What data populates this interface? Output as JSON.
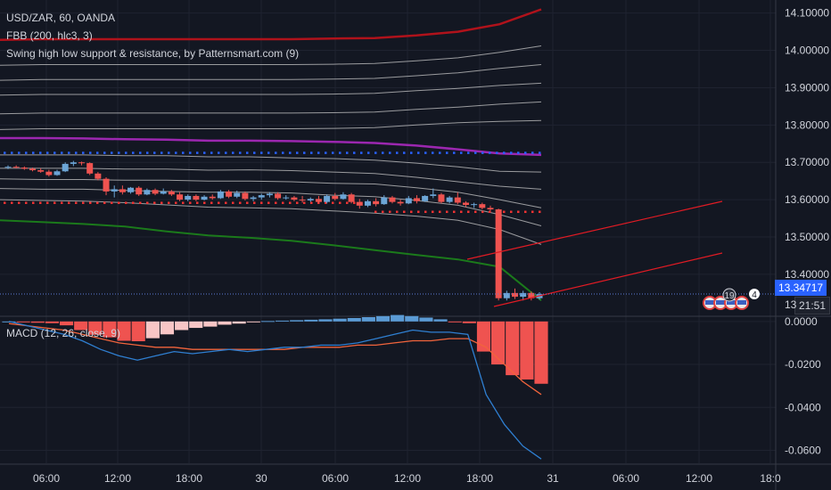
{
  "symbol_title": "USD/ZAR, 60, OANDA",
  "indicators": {
    "fbb": "FBB (200, hlc3, 3)",
    "swing": "Swing high low support & resistance, by Patternsmart.com (9)",
    "macd": "MACD (12, 26, close, 9)"
  },
  "price_axis": {
    "ticks": [
      "14.10000",
      "14.00000",
      "13.90000",
      "13.80000",
      "13.70000",
      "13.60000",
      "13.50000",
      "13.40000"
    ],
    "last_price": "13.34717",
    "countdown": "21:51",
    "partial_tick": "13"
  },
  "macd_axis": {
    "ticks": [
      "0.0000",
      "-0.0200",
      "-0.0400",
      "-0.0600"
    ]
  },
  "time_axis": {
    "ticks": [
      "06:00",
      "12:00",
      "18:00",
      "30",
      "06:00",
      "12:00",
      "18:00",
      "31",
      "06:00",
      "12:00",
      "18:0"
    ]
  },
  "events": {
    "count_a": "19",
    "count_b": "4"
  },
  "colors": {
    "up": "#6ca5d6",
    "down": "#ef5350",
    "fbb_top": "#b0121b",
    "fbb_mid": "#9c27b0",
    "fbb_bottom": "#1b7a1b",
    "band": "#c8c8c8",
    "swing_high": "#2962ff",
    "swing_low": "#ef3333",
    "macd_line": "#2f7fd1",
    "signal_line": "#f2643c",
    "hist_neg_strong": "#ef5350",
    "hist_neg_weak": "#f8c6c6",
    "hist_pos": "#5b9bd5"
  },
  "chart_data": [
    {
      "type": "candlestick",
      "title": "USD/ZAR, 60, OANDA",
      "ylim": [
        13.29,
        14.135
      ],
      "x_ticks": [
        "06:00",
        "12:00",
        "18:00",
        "30",
        "06:00",
        "12:00",
        "18:00",
        "31",
        "06:00",
        "12:00",
        "18:0"
      ],
      "candles": [
        {
          "o": 13.686,
          "h": 13.692,
          "l": 13.682,
          "c": 13.688
        },
        {
          "o": 13.688,
          "h": 13.692,
          "l": 13.684,
          "c": 13.686
        },
        {
          "o": 13.686,
          "h": 13.689,
          "l": 13.68,
          "c": 13.683
        },
        {
          "o": 13.683,
          "h": 13.686,
          "l": 13.676,
          "c": 13.679
        },
        {
          "o": 13.679,
          "h": 13.684,
          "l": 13.672,
          "c": 13.675
        },
        {
          "o": 13.675,
          "h": 13.68,
          "l": 13.662,
          "c": 13.666
        },
        {
          "o": 13.666,
          "h": 13.68,
          "l": 13.664,
          "c": 13.676
        },
        {
          "o": 13.676,
          "h": 13.7,
          "l": 13.674,
          "c": 13.696
        },
        {
          "o": 13.696,
          "h": 13.704,
          "l": 13.69,
          "c": 13.7
        },
        {
          "o": 13.7,
          "h": 13.702,
          "l": 13.692,
          "c": 13.698
        },
        {
          "o": 13.698,
          "h": 13.7,
          "l": 13.666,
          "c": 13.67
        },
        {
          "o": 13.67,
          "h": 13.674,
          "l": 13.652,
          "c": 13.656
        },
        {
          "o": 13.656,
          "h": 13.66,
          "l": 13.612,
          "c": 13.622
        },
        {
          "o": 13.622,
          "h": 13.638,
          "l": 13.606,
          "c": 13.628
        },
        {
          "o": 13.628,
          "h": 13.638,
          "l": 13.614,
          "c": 13.62
        },
        {
          "o": 13.62,
          "h": 13.634,
          "l": 13.616,
          "c": 13.632
        },
        {
          "o": 13.632,
          "h": 13.636,
          "l": 13.61,
          "c": 13.614
        },
        {
          "o": 13.614,
          "h": 13.63,
          "l": 13.612,
          "c": 13.626
        },
        {
          "o": 13.626,
          "h": 13.63,
          "l": 13.612,
          "c": 13.616
        },
        {
          "o": 13.616,
          "h": 13.63,
          "l": 13.614,
          "c": 13.622
        },
        {
          "o": 13.622,
          "h": 13.626,
          "l": 13.61,
          "c": 13.614
        },
        {
          "o": 13.614,
          "h": 13.62,
          "l": 13.596,
          "c": 13.6
        },
        {
          "o": 13.6,
          "h": 13.614,
          "l": 13.596,
          "c": 13.61
        },
        {
          "o": 13.61,
          "h": 13.614,
          "l": 13.596,
          "c": 13.6
        },
        {
          "o": 13.6,
          "h": 13.612,
          "l": 13.598,
          "c": 13.608
        },
        {
          "o": 13.608,
          "h": 13.614,
          "l": 13.6,
          "c": 13.604
        },
        {
          "o": 13.604,
          "h": 13.626,
          "l": 13.602,
          "c": 13.622
        },
        {
          "o": 13.622,
          "h": 13.626,
          "l": 13.604,
          "c": 13.608
        },
        {
          "o": 13.608,
          "h": 13.624,
          "l": 13.604,
          "c": 13.618
        },
        {
          "o": 13.618,
          "h": 13.622,
          "l": 13.598,
          "c": 13.602
        },
        {
          "o": 13.602,
          "h": 13.61,
          "l": 13.596,
          "c": 13.606
        },
        {
          "o": 13.606,
          "h": 13.616,
          "l": 13.6,
          "c": 13.612
        },
        {
          "o": 13.612,
          "h": 13.62,
          "l": 13.606,
          "c": 13.616
        },
        {
          "o": 13.616,
          "h": 13.62,
          "l": 13.6,
          "c": 13.604
        },
        {
          "o": 13.604,
          "h": 13.612,
          "l": 13.6,
          "c": 13.606
        },
        {
          "o": 13.606,
          "h": 13.61,
          "l": 13.596,
          "c": 13.6
        },
        {
          "o": 13.6,
          "h": 13.61,
          "l": 13.592,
          "c": 13.598
        },
        {
          "o": 13.598,
          "h": 13.606,
          "l": 13.594,
          "c": 13.602
        },
        {
          "o": 13.602,
          "h": 13.61,
          "l": 13.59,
          "c": 13.594
        },
        {
          "o": 13.594,
          "h": 13.614,
          "l": 13.59,
          "c": 13.61
        },
        {
          "o": 13.61,
          "h": 13.618,
          "l": 13.598,
          "c": 13.602
        },
        {
          "o": 13.602,
          "h": 13.62,
          "l": 13.6,
          "c": 13.614
        },
        {
          "o": 13.614,
          "h": 13.618,
          "l": 13.59,
          "c": 13.594
        },
        {
          "o": 13.594,
          "h": 13.602,
          "l": 13.576,
          "c": 13.584
        },
        {
          "o": 13.584,
          "h": 13.6,
          "l": 13.58,
          "c": 13.596
        },
        {
          "o": 13.596,
          "h": 13.604,
          "l": 13.582,
          "c": 13.588
        },
        {
          "o": 13.588,
          "h": 13.612,
          "l": 13.586,
          "c": 13.606
        },
        {
          "o": 13.606,
          "h": 13.61,
          "l": 13.59,
          "c": 13.594
        },
        {
          "o": 13.594,
          "h": 13.6,
          "l": 13.584,
          "c": 13.59
        },
        {
          "o": 13.59,
          "h": 13.61,
          "l": 13.588,
          "c": 13.604
        },
        {
          "o": 13.604,
          "h": 13.612,
          "l": 13.59,
          "c": 13.596
        },
        {
          "o": 13.596,
          "h": 13.612,
          "l": 13.594,
          "c": 13.61
        },
        {
          "o": 13.61,
          "h": 13.63,
          "l": 13.604,
          "c": 13.614
        },
        {
          "o": 13.614,
          "h": 13.618,
          "l": 13.59,
          "c": 13.594
        },
        {
          "o": 13.594,
          "h": 13.61,
          "l": 13.59,
          "c": 13.606
        },
        {
          "o": 13.606,
          "h": 13.62,
          "l": 13.588,
          "c": 13.592
        },
        {
          "o": 13.592,
          "h": 13.596,
          "l": 13.58,
          "c": 13.586
        },
        {
          "o": 13.586,
          "h": 13.592,
          "l": 13.578,
          "c": 13.588
        },
        {
          "o": 13.588,
          "h": 13.592,
          "l": 13.574,
          "c": 13.578
        },
        {
          "o": 13.578,
          "h": 13.584,
          "l": 13.57,
          "c": 13.574
        },
        {
          "o": 13.574,
          "h": 13.576,
          "l": 13.33,
          "c": 13.336
        },
        {
          "o": 13.336,
          "h": 13.356,
          "l": 13.33,
          "c": 13.35
        },
        {
          "o": 13.35,
          "h": 13.362,
          "l": 13.334,
          "c": 13.34
        },
        {
          "o": 13.34,
          "h": 13.356,
          "l": 13.33,
          "c": 13.35
        },
        {
          "o": 13.35,
          "h": 13.354,
          "l": 13.33,
          "c": 13.336
        },
        {
          "o": 13.336,
          "h": 13.352,
          "l": 13.332,
          "c": 13.347
        }
      ],
      "bands": {
        "fbb_top": [
          14.028,
          14.03,
          14.03,
          14.03,
          14.03,
          14.03,
          14.03,
          14.03,
          14.032,
          14.033,
          14.04,
          14.05,
          14.07,
          14.11
        ],
        "band_upper_1": [
          13.96,
          13.962,
          13.962,
          13.962,
          13.962,
          13.962,
          13.962,
          13.962,
          13.963,
          13.965,
          13.972,
          13.98,
          13.995,
          14.012
        ],
        "band_upper_2": [
          13.92,
          13.922,
          13.922,
          13.922,
          13.922,
          13.922,
          13.922,
          13.922,
          13.923,
          13.925,
          13.932,
          13.94,
          13.952,
          13.962
        ],
        "band_upper_3": [
          13.88,
          13.882,
          13.882,
          13.882,
          13.882,
          13.882,
          13.882,
          13.882,
          13.883,
          13.885,
          13.892,
          13.898,
          13.906,
          13.912
        ],
        "band_upper_4": [
          13.83,
          13.832,
          13.832,
          13.832,
          13.832,
          13.832,
          13.832,
          13.832,
          13.833,
          13.835,
          13.842,
          13.848,
          13.856,
          13.862
        ],
        "band_upper_5": [
          13.788,
          13.79,
          13.79,
          13.79,
          13.79,
          13.79,
          13.79,
          13.79,
          13.791,
          13.793,
          13.8,
          13.806,
          13.81,
          13.812
        ],
        "fbb_mid": [
          13.765,
          13.765,
          13.764,
          13.762,
          13.761,
          13.758,
          13.758,
          13.757,
          13.755,
          13.752,
          13.745,
          13.735,
          13.724,
          13.72
        ],
        "band_lower_1": [
          13.72,
          13.72,
          13.72,
          13.718,
          13.718,
          13.715,
          13.715,
          13.712,
          13.71,
          13.706,
          13.698,
          13.688,
          13.676,
          13.674
        ],
        "band_lower_2": [
          13.684,
          13.684,
          13.684,
          13.682,
          13.682,
          13.679,
          13.68,
          13.678,
          13.674,
          13.67,
          13.66,
          13.648,
          13.636,
          13.628
        ],
        "band_lower_3": [
          13.656,
          13.654,
          13.654,
          13.652,
          13.652,
          13.65,
          13.65,
          13.648,
          13.644,
          13.642,
          13.632,
          13.62,
          13.6,
          13.578
        ],
        "band_lower_4": [
          13.63,
          13.628,
          13.628,
          13.625,
          13.622,
          13.62,
          13.62,
          13.618,
          13.612,
          13.608,
          13.598,
          13.585,
          13.56,
          13.53
        ],
        "band_lower_5": [
          13.6,
          13.598,
          13.596,
          13.592,
          13.586,
          13.58,
          13.578,
          13.576,
          13.57,
          13.564,
          13.556,
          13.545,
          13.52,
          13.48
        ],
        "fbb_bottom": [
          13.545,
          13.54,
          13.535,
          13.528,
          13.515,
          13.504,
          13.498,
          13.49,
          13.478,
          13.465,
          13.452,
          13.44,
          13.42,
          13.33
        ]
      },
      "swing_high_level": 13.726,
      "swing_low_level": 13.592,
      "last_price": 13.34717
    },
    {
      "type": "histogram+line",
      "title": "MACD (12, 26, close, 9)",
      "ylim": [
        -0.066,
        0.002
      ],
      "histogram": [
        0.0,
        -0.0004,
        -0.0006,
        -0.0008,
        -0.0018,
        -0.004,
        -0.0062,
        -0.0074,
        -0.009,
        -0.0092,
        -0.0078,
        -0.006,
        -0.004,
        -0.003,
        -0.0024,
        -0.0015,
        -0.001,
        -0.0004,
        0.0002,
        0.0004,
        0.0006,
        0.0008,
        0.001,
        0.0013,
        0.0016,
        0.002,
        0.0025,
        0.003,
        0.0025,
        0.0018,
        0.001,
        -0.0004,
        -0.0008,
        -0.014,
        -0.02,
        -0.025,
        -0.027,
        -0.029
      ],
      "macd_line": [
        0.0,
        -0.002,
        -0.004,
        -0.006,
        -0.009,
        -0.013,
        -0.016,
        -0.018,
        -0.016,
        -0.014,
        -0.015,
        -0.014,
        -0.013,
        -0.014,
        -0.013,
        -0.012,
        -0.012,
        -0.011,
        -0.011,
        -0.01,
        -0.008,
        -0.006,
        -0.004,
        -0.005,
        -0.005,
        -0.006,
        -0.034,
        -0.048,
        -0.058,
        -0.064
      ],
      "signal_line": [
        -0.001,
        -0.002,
        -0.003,
        -0.004,
        -0.006,
        -0.008,
        -0.01,
        -0.011,
        -0.012,
        -0.012,
        -0.013,
        -0.013,
        -0.013,
        -0.013,
        -0.013,
        -0.013,
        -0.012,
        -0.012,
        -0.012,
        -0.011,
        -0.011,
        -0.01,
        -0.009,
        -0.009,
        -0.008,
        -0.008,
        -0.012,
        -0.02,
        -0.028,
        -0.034
      ]
    }
  ]
}
